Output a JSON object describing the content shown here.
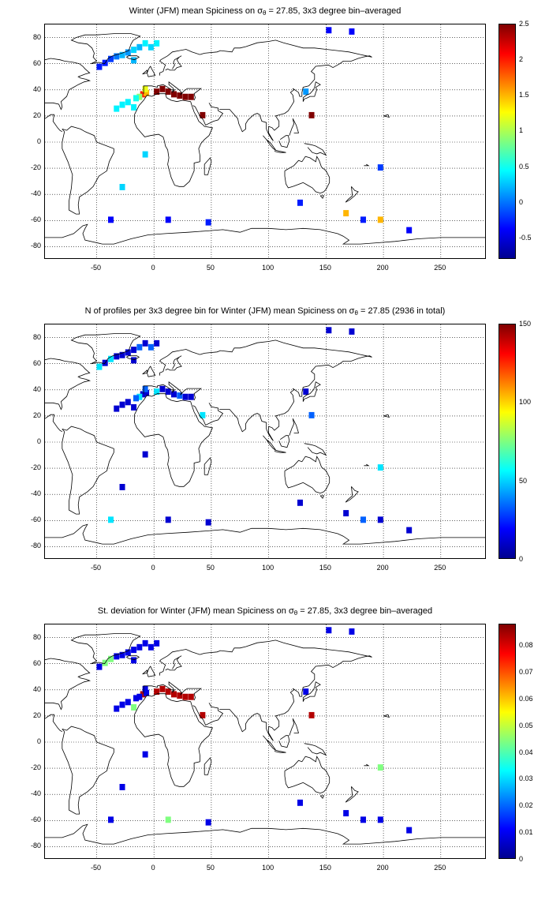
{
  "panels": [
    {
      "title_pre": "Winter (JFM) mean Spiciness on σ",
      "title_sub": "θ",
      "title_post": " = 27.85, 3x3 degree bin–averaged",
      "colorbar_ticks": [
        "2.5",
        "2",
        "1.5",
        "1",
        "0.5",
        "0",
        "-0.5"
      ],
      "colorbar_values": [
        2.5,
        2,
        1.5,
        1,
        0.5,
        0,
        -0.5
      ],
      "clim": [
        -0.8,
        2.5
      ]
    },
    {
      "title_pre": "N of profiles per 3x3 degree bin for Winter (JFM) mean Spiciness on σ",
      "title_sub": "θ",
      "title_post": " = 27.85 (2936 in total)",
      "colorbar_ticks": [
        "150",
        "100",
        "50",
        "0"
      ],
      "colorbar_values": [
        150,
        100,
        50,
        0
      ],
      "clim": [
        0,
        150
      ]
    },
    {
      "title_pre": "St. deviation for Winter (JFM) mean Spiciness on σ",
      "title_sub": "θ",
      "title_post": " = 27.85, 3x3 degree bin–averaged",
      "colorbar_ticks": [
        "0.08",
        "0.07",
        "0.06",
        "0.05",
        "0.04",
        "0.03",
        "0.02",
        "0.01",
        "0"
      ],
      "colorbar_values": [
        0.08,
        0.07,
        0.06,
        0.05,
        0.04,
        0.03,
        0.02,
        0.01,
        0
      ],
      "clim": [
        0,
        0.088
      ]
    }
  ],
  "x_ticks": [
    "-50",
    "0",
    "50",
    "100",
    "150",
    "200",
    "250"
  ],
  "x_tick_values": [
    -50,
    0,
    50,
    100,
    150,
    200,
    250
  ],
  "y_ticks": [
    "80",
    "60",
    "40",
    "20",
    "0",
    "-20",
    "-40",
    "-60",
    "-80"
  ],
  "y_tick_values": [
    80,
    60,
    40,
    20,
    0,
    -20,
    -40,
    -60,
    -80
  ],
  "xlim": [
    -95,
    290
  ],
  "ylim": [
    -90,
    90
  ],
  "chart_data": [
    {
      "type": "heatmap",
      "title": "Winter (JFM) mean Spiciness on σθ = 27.85, 3x3 degree bin–averaged",
      "xlim": [
        -95,
        290
      ],
      "ylim": [
        -90,
        90
      ],
      "grid": true,
      "colorbar_range": [
        -0.8,
        2.5
      ],
      "cells": [
        {
          "lon": -40,
          "lat": 63,
          "v": -0.2
        },
        {
          "lon": -35,
          "lat": 65,
          "v": 0.0
        },
        {
          "lon": -30,
          "lat": 66,
          "v": 0.2
        },
        {
          "lon": -25,
          "lat": 68,
          "v": 0.1
        },
        {
          "lon": -20,
          "lat": 70,
          "v": 0.3
        },
        {
          "lon": -15,
          "lat": 72,
          "v": 0.2
        },
        {
          "lon": -45,
          "lat": 60,
          "v": -0.3
        },
        {
          "lon": -50,
          "lat": 57,
          "v": -0.3
        },
        {
          "lon": -10,
          "lat": 75,
          "v": 0.4
        },
        {
          "lon": -20,
          "lat": 62,
          "v": 0.2
        },
        {
          "lon": -5,
          "lat": 72,
          "v": 0.3
        },
        {
          "lon": 0,
          "lat": 75,
          "v": 0.4
        },
        {
          "lon": -12,
          "lat": 36,
          "v": 2.0
        },
        {
          "lon": -9,
          "lat": 37,
          "v": 1.5
        },
        {
          "lon": -15,
          "lat": 34,
          "v": 0.9
        },
        {
          "lon": -18,
          "lat": 33,
          "v": 0.5
        },
        {
          "lon": -25,
          "lat": 30,
          "v": 0.4
        },
        {
          "lon": -30,
          "lat": 28,
          "v": 0.4
        },
        {
          "lon": -20,
          "lat": 26,
          "v": 0.4
        },
        {
          "lon": -35,
          "lat": 25,
          "v": 0.4
        },
        {
          "lon": -10,
          "lat": 40,
          "v": 1.2
        },
        {
          "lon": 0,
          "lat": 38,
          "v": 2.5
        },
        {
          "lon": 5,
          "lat": 40,
          "v": 2.5
        },
        {
          "lon": 10,
          "lat": 38,
          "v": 2.5
        },
        {
          "lon": 15,
          "lat": 36,
          "v": 2.5
        },
        {
          "lon": 20,
          "lat": 35,
          "v": 2.5
        },
        {
          "lon": 25,
          "lat": 34,
          "v": 2.5
        },
        {
          "lon": 30,
          "lat": 34,
          "v": 2.5
        },
        {
          "lon": 40,
          "lat": 20,
          "v": 2.5
        },
        {
          "lon": 130,
          "lat": 38,
          "v": 0.1
        },
        {
          "lon": 135,
          "lat": 20,
          "v": 2.5
        },
        {
          "lon": 150,
          "lat": 85,
          "v": -0.4
        },
        {
          "lon": 170,
          "lat": 84,
          "v": -0.4
        },
        {
          "lon": -10,
          "lat": -10,
          "v": 0.3
        },
        {
          "lon": -30,
          "lat": -35,
          "v": 0.3
        },
        {
          "lon": -40,
          "lat": -60,
          "v": -0.4
        },
        {
          "lon": 10,
          "lat": -60,
          "v": -0.4
        },
        {
          "lon": 45,
          "lat": -62,
          "v": -0.3
        },
        {
          "lon": 125,
          "lat": -47,
          "v": -0.3
        },
        {
          "lon": 165,
          "lat": -55,
          "v": 1.5
        },
        {
          "lon": 180,
          "lat": -60,
          "v": -0.3
        },
        {
          "lon": 195,
          "lat": -60,
          "v": 1.5
        },
        {
          "lon": 195,
          "lat": -20,
          "v": -0.2
        },
        {
          "lon": 220,
          "lat": -68,
          "v": -0.4
        }
      ]
    },
    {
      "type": "heatmap",
      "title": "N of profiles per 3x3 degree bin for Winter (JFM) mean Spiciness on σθ = 27.85 (2936 in total)",
      "xlim": [
        -95,
        290
      ],
      "ylim": [
        -90,
        90
      ],
      "grid": true,
      "colorbar_range": [
        0,
        150
      ],
      "total_profiles": 2936
    },
    {
      "type": "heatmap",
      "title": "St. deviation for Winter (JFM) mean Spiciness on σθ = 27.85, 3x3 degree bin–averaged",
      "xlim": [
        -95,
        290
      ],
      "ylim": [
        -90,
        90
      ],
      "grid": true,
      "colorbar_range": [
        0,
        0.088
      ]
    }
  ]
}
